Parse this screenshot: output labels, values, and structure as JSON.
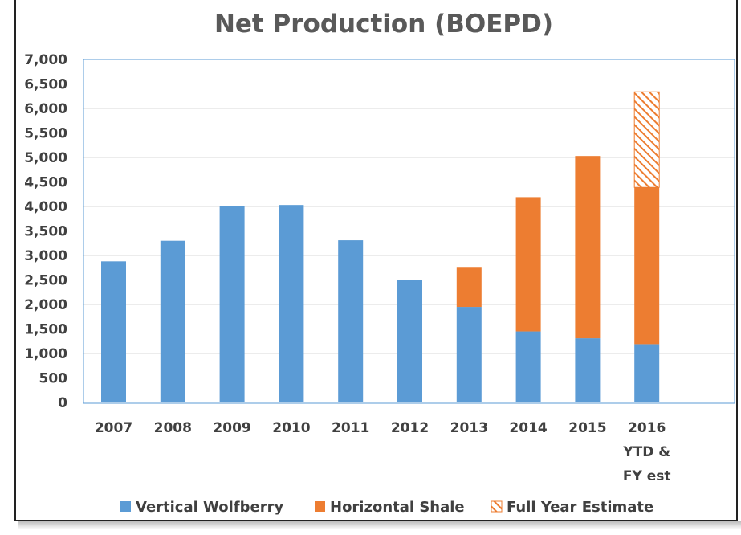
{
  "chart_data": {
    "type": "bar",
    "stacked": true,
    "title": "Net Production (BOEPD)",
    "xlabel": "",
    "ylabel": "",
    "ylim": [
      0,
      7000
    ],
    "ytick_step": 500,
    "grid": true,
    "legend_position": "bottom",
    "categories": [
      "2007",
      "2008",
      "2009",
      "2010",
      "2011",
      "2012",
      "2013",
      "2014",
      "2015",
      "2016 YTD & FY est"
    ],
    "category_lines": [
      [
        "2007"
      ],
      [
        "2008"
      ],
      [
        "2009"
      ],
      [
        "2010"
      ],
      [
        "2011"
      ],
      [
        "2012"
      ],
      [
        "2013"
      ],
      [
        "2014"
      ],
      [
        "2015"
      ],
      [
        "2016",
        "YTD &",
        "FY est"
      ]
    ],
    "series": [
      {
        "name": "Vertical Wolfberry",
        "color": "#5b9bd5",
        "pattern": "solid",
        "values": [
          2880,
          3300,
          4010,
          4030,
          3310,
          2500,
          1950,
          1450,
          1310,
          1190
        ]
      },
      {
        "name": "Horizontal Shale",
        "color": "#ed7d31",
        "pattern": "solid",
        "values": [
          0,
          0,
          0,
          0,
          0,
          0,
          800,
          2740,
          3720,
          3200
        ]
      },
      {
        "name": "Full Year Estimate",
        "color": "#ed7d31",
        "pattern": "hatched",
        "values": [
          0,
          0,
          0,
          0,
          0,
          0,
          0,
          0,
          0,
          1950
        ]
      }
    ]
  }
}
